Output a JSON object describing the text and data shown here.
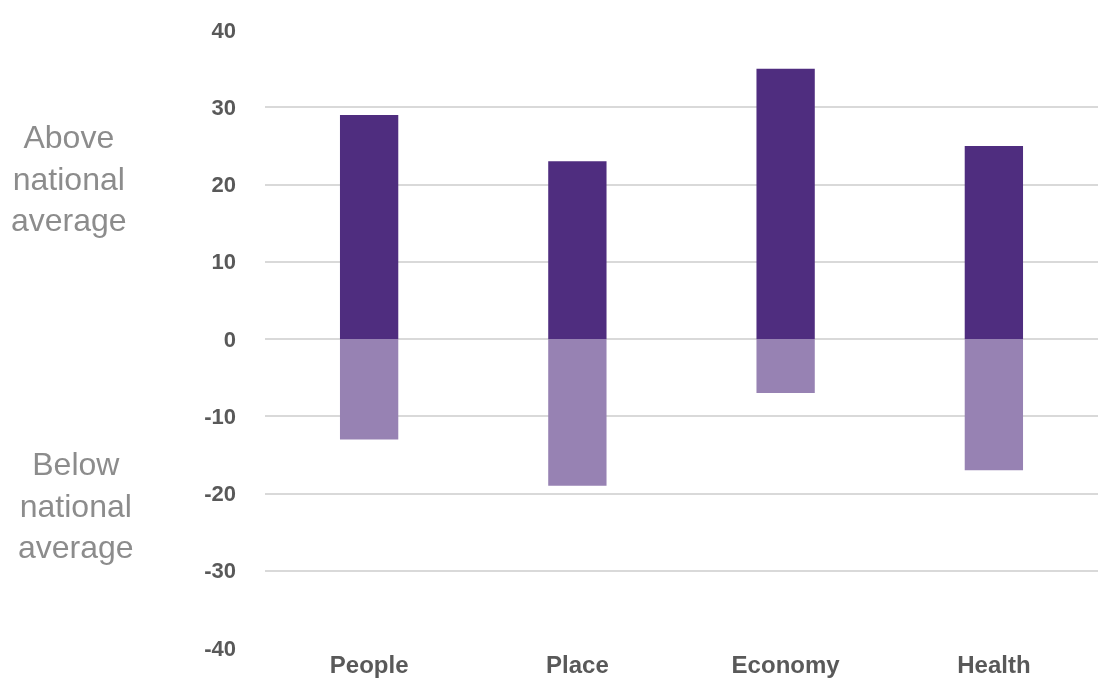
{
  "chart_data": {
    "type": "bar",
    "stacked": true,
    "categories": [
      "People",
      "Place",
      "Economy",
      "Health"
    ],
    "series": [
      {
        "color": "#4f2d7f",
        "values": [
          29,
          23,
          35,
          25
        ]
      },
      {
        "color": "#9782b3",
        "values": [
          -13,
          -19,
          -7,
          -17
        ]
      }
    ],
    "ylim": [
      -40,
      40
    ],
    "yticks": [
      -40,
      -30,
      -20,
      -10,
      0,
      10,
      20,
      30,
      40
    ],
    "grid": "y",
    "annotations": [
      "Above national average",
      "Below national average"
    ]
  }
}
